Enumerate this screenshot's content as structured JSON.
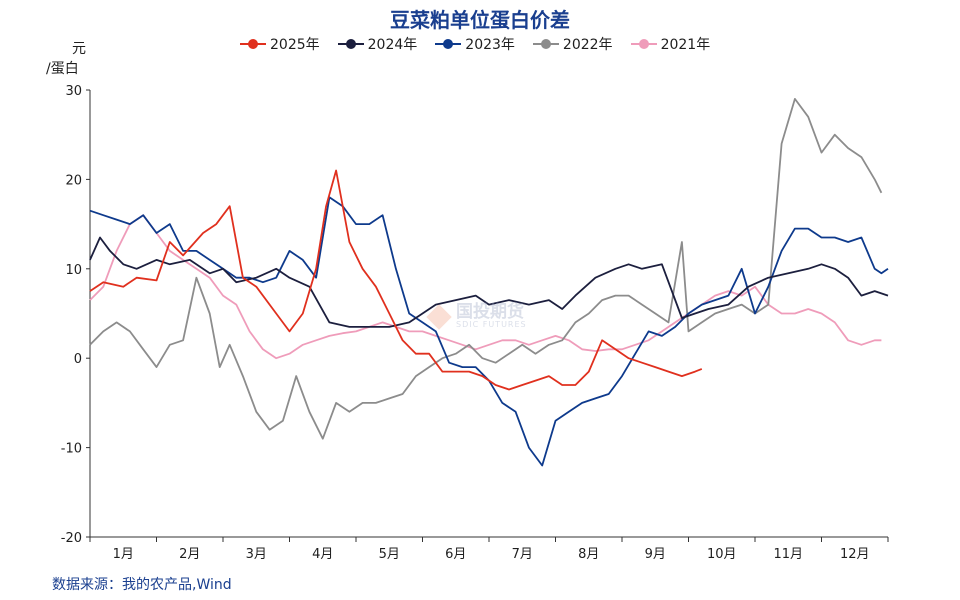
{
  "chart_data": {
    "type": "line",
    "title": "豆菜粕单位蛋白价差",
    "ylabel_line1": "元",
    "ylabel_line2": "/蛋白",
    "ylim": [
      -20,
      30
    ],
    "yticks": [
      "30",
      "20",
      "10",
      "0",
      "-10",
      "-20"
    ],
    "ytick_values": [
      30,
      20,
      10,
      0,
      -10,
      -20
    ],
    "xlim": [
      0,
      12
    ],
    "x_unit": "month (fractional, 0 = start of January)",
    "categories": [
      "1月",
      "2月",
      "3月",
      "4月",
      "5月",
      "6月",
      "7月",
      "8月",
      "9月",
      "10月",
      "11月",
      "12月"
    ],
    "grid": false,
    "legend_position": "top",
    "series": [
      {
        "name": "2025年",
        "color": "#e0301e",
        "x": [
          0,
          0.2,
          0.5,
          0.7,
          1.0,
          1.2,
          1.4,
          1.7,
          1.9,
          2.1,
          2.3,
          2.5,
          2.8,
          3.0,
          3.2,
          3.4,
          3.55,
          3.7,
          3.9,
          4.1,
          4.3,
          4.5,
          4.7,
          4.9,
          5.1,
          5.3,
          5.5,
          5.7,
          5.9,
          6.1,
          6.3,
          6.5,
          6.7,
          6.9,
          7.1,
          7.3,
          7.5,
          7.7,
          7.9,
          8.1,
          8.3,
          8.5,
          8.7,
          8.9,
          9.1,
          9.2
        ],
        "values": [
          7.5,
          8.5,
          8,
          9,
          8.7,
          13,
          11.5,
          14,
          15,
          17,
          9,
          8,
          5,
          3,
          5,
          10,
          17,
          21,
          13,
          10,
          8,
          5,
          2,
          0.5,
          0.5,
          -1.5,
          -1.5,
          -1.5,
          -2,
          -3,
          -3.5,
          -3,
          -2.5,
          -2,
          -3,
          -3,
          -1.5,
          2,
          1,
          0,
          -0.5,
          -1,
          -1.5,
          -2,
          -1.5,
          -1.2
        ]
      },
      {
        "name": "2024年",
        "color": "#1c1f3e",
        "x": [
          0,
          0.15,
          0.3,
          0.5,
          0.7,
          1.0,
          1.2,
          1.5,
          1.8,
          2.0,
          2.2,
          2.5,
          2.8,
          3.0,
          3.3,
          3.6,
          3.9,
          4.2,
          4.5,
          4.8,
          5.0,
          5.2,
          5.5,
          5.8,
          6.0,
          6.3,
          6.6,
          6.9,
          7.1,
          7.3,
          7.6,
          7.9,
          8.1,
          8.3,
          8.6,
          8.9,
          9.1,
          9.3,
          9.6,
          9.9,
          10.2,
          10.5,
          10.8,
          11.0,
          11.2,
          11.4,
          11.6,
          11.8,
          12.0
        ],
        "values": [
          11,
          13.5,
          12,
          10.5,
          10,
          11,
          10.5,
          11,
          9.5,
          10,
          8.5,
          9,
          10,
          9,
          8,
          4,
          3.5,
          3.5,
          3.5,
          4,
          5,
          6,
          6.5,
          7,
          6,
          6.5,
          6,
          6.5,
          5.5,
          7,
          9,
          10,
          10.5,
          10,
          10.5,
          4.5,
          5,
          5.5,
          6,
          8,
          9,
          9.5,
          10,
          10.5,
          10,
          9,
          7,
          7.5,
          7
        ]
      },
      {
        "name": "2023年",
        "color": "#0e3a8c",
        "x": [
          0,
          0.2,
          0.4,
          0.6,
          0.8,
          1.0,
          1.2,
          1.4,
          1.6,
          1.8,
          2.0,
          2.2,
          2.4,
          2.6,
          2.8,
          3.0,
          3.2,
          3.4,
          3.6,
          3.8,
          4.0,
          4.2,
          4.4,
          4.6,
          4.8,
          5.0,
          5.2,
          5.4,
          5.6,
          5.8,
          6.0,
          6.2,
          6.4,
          6.6,
          6.8,
          7.0,
          7.2,
          7.4,
          7.6,
          7.8,
          8.0,
          8.2,
          8.4,
          8.6,
          8.8,
          9.0,
          9.2,
          9.4,
          9.6,
          9.8,
          10.0,
          10.2,
          10.4,
          10.6,
          10.8,
          11.0,
          11.2,
          11.4,
          11.6,
          11.8,
          11.9,
          12.0
        ],
        "values": [
          16.5,
          16,
          15.5,
          15,
          16,
          14,
          15,
          12,
          12,
          11,
          10,
          9,
          9,
          8.5,
          9,
          12,
          11,
          9,
          18,
          17,
          15,
          15,
          16,
          10,
          5,
          4,
          3,
          -0.5,
          -1,
          -1,
          -2.5,
          -5,
          -6,
          -10,
          -12,
          -7,
          -6,
          -5,
          -4.5,
          -4,
          -2,
          0.5,
          3,
          2.5,
          3.5,
          5,
          6,
          6.5,
          7,
          10,
          5,
          8,
          12,
          14.5,
          14.5,
          13.5,
          13.5,
          13,
          13.5,
          10,
          9.5,
          10
        ]
      },
      {
        "name": "2022年",
        "color": "#8c8c8c",
        "x": [
          0,
          0.2,
          0.4,
          0.6,
          0.8,
          1.0,
          1.2,
          1.4,
          1.6,
          1.8,
          1.95,
          2.1,
          2.3,
          2.5,
          2.7,
          2.9,
          3.1,
          3.3,
          3.5,
          3.7,
          3.9,
          4.1,
          4.3,
          4.5,
          4.7,
          4.9,
          5.1,
          5.3,
          5.5,
          5.7,
          5.9,
          6.1,
          6.3,
          6.5,
          6.7,
          6.9,
          7.1,
          7.3,
          7.5,
          7.7,
          7.9,
          8.1,
          8.3,
          8.5,
          8.7,
          8.9,
          9.0,
          9.2,
          9.4,
          9.6,
          9.8,
          10.0,
          10.2,
          10.4,
          10.6,
          10.8,
          11.0,
          11.2,
          11.4,
          11.6,
          11.8,
          11.9
        ],
        "values": [
          1.5,
          3,
          4,
          3,
          1,
          -1,
          1.5,
          2,
          9,
          5,
          -1,
          1.5,
          -2,
          -6,
          -8,
          -7,
          -2,
          -6,
          -9,
          -5,
          -6,
          -5,
          -5,
          -4.5,
          -4,
          -2,
          -1,
          0,
          0.5,
          1.5,
          0,
          -0.5,
          0.5,
          1.5,
          0.5,
          1.5,
          2,
          4,
          5,
          6.5,
          7,
          7,
          6,
          5,
          4,
          13,
          3,
          4,
          5,
          5.5,
          6,
          5,
          6,
          24,
          29,
          27,
          23,
          25,
          23.5,
          22.5,
          20,
          18.5
        ]
      },
      {
        "name": "2021年",
        "color": "#ef9cba",
        "x": [
          0,
          0.2,
          0.4,
          0.6,
          0.8,
          1.0,
          1.2,
          1.4,
          1.6,
          1.8,
          2.0,
          2.2,
          2.4,
          2.6,
          2.8,
          3.0,
          3.2,
          3.4,
          3.6,
          3.8,
          4.0,
          4.2,
          4.4,
          4.6,
          4.8,
          5.0,
          5.2,
          5.4,
          5.6,
          5.8,
          6.0,
          6.2,
          6.4,
          6.6,
          6.8,
          7.0,
          7.2,
          7.4,
          7.6,
          7.8,
          8.0,
          8.2,
          8.4,
          8.6,
          8.8,
          9.0,
          9.2,
          9.4,
          9.6,
          9.8,
          10.0,
          10.2,
          10.4,
          10.6,
          10.8,
          11.0,
          11.2,
          11.4,
          11.6,
          11.8,
          11.9
        ],
        "values": [
          6.5,
          8,
          12,
          15,
          16,
          14,
          12,
          11,
          10,
          9,
          7,
          6,
          3,
          1,
          0,
          0.5,
          1.5,
          2,
          2.5,
          2.8,
          3,
          3.5,
          4,
          3.5,
          3,
          3,
          2.5,
          2,
          1.5,
          1,
          1.5,
          2,
          2,
          1.5,
          2,
          2.5,
          2,
          1,
          0.8,
          1,
          1,
          1.5,
          2,
          3,
          4,
          5,
          6,
          7,
          7.5,
          7,
          8,
          6,
          5,
          5,
          5.5,
          5,
          4,
          2,
          1.5,
          2,
          2
        ]
      }
    ]
  },
  "source": "数据来源：我的农产品,Wind",
  "watermark": {
    "cn": "国投期货",
    "en": "SDIC FUTURES"
  }
}
